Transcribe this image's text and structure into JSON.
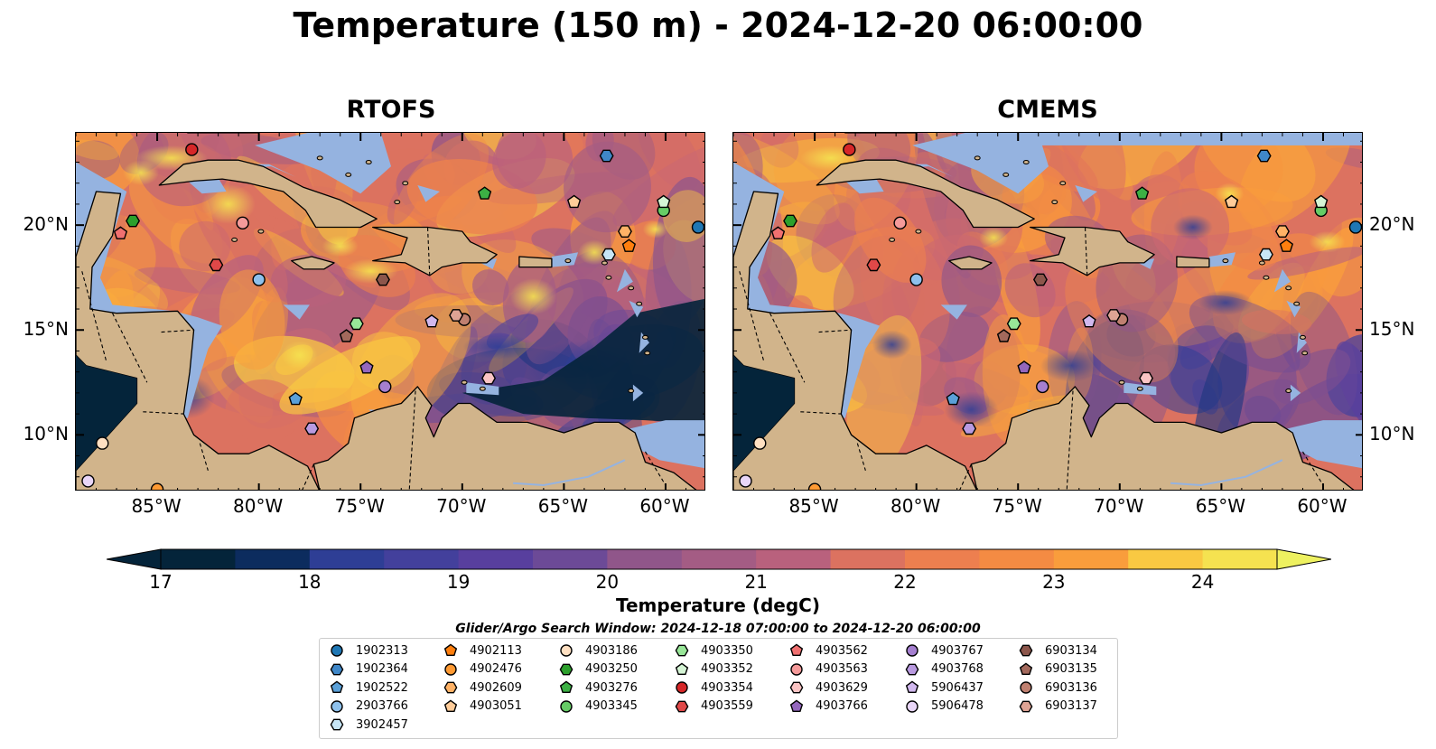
{
  "title": "Temperature (150 m) - 2024-12-20 06:00:00",
  "panels": [
    {
      "id": "rtofs",
      "title": "RTOFS"
    },
    {
      "id": "cmems",
      "title": "CMEMS"
    }
  ],
  "map_extent": {
    "lon": [
      -89,
      -58
    ],
    "lat": [
      7.3,
      24.4
    ]
  },
  "lon_ticks": [
    "85°W",
    "80°W",
    "75°W",
    "70°W",
    "65°W",
    "60°W"
  ],
  "lat_ticks": [
    "20°N",
    "15°N",
    "10°N"
  ],
  "colorbar": {
    "label": "Temperature (degC)",
    "ticks": [
      "17",
      "18",
      "19",
      "20",
      "21",
      "22",
      "23",
      "24"
    ],
    "range": [
      17,
      24.5
    ],
    "colors": [
      "#04243a",
      "#0c2c5e",
      "#1f3680",
      "#2e3e95",
      "#43409c",
      "#583f9e",
      "#6c4a97",
      "#7e4f90",
      "#90568a",
      "#a45c84",
      "#b9617d",
      "#cb6872",
      "#dc7260",
      "#ed7f4f",
      "#f48b43",
      "#f99d3c",
      "#fbb13b",
      "#f9c942",
      "#f5e250",
      "#eef160"
    ],
    "extend": "both"
  },
  "colors": {
    "ocean_shelf": "#95b3e0",
    "land": "#d1b48b",
    "deep": "#04243a"
  },
  "search_window": "Glider/Argo Search Window: 2024-12-18 07:00:00 to 2024-12-20 06:00:00",
  "legend": [
    {
      "id": "1902313",
      "color": "#1f77b4",
      "marker": "circle",
      "lon": -58.4,
      "lat": 19.9
    },
    {
      "id": "1902364",
      "color": "#3f87c8",
      "marker": "hexagon",
      "lon": -62.9,
      "lat": 23.3
    },
    {
      "id": "1902522",
      "color": "#5aa0d8",
      "marker": "pentagon",
      "lon": -78.2,
      "lat": 11.7
    },
    {
      "id": "2903766",
      "color": "#8ec1ec",
      "marker": "circle",
      "lon": -80.0,
      "lat": 17.4
    },
    {
      "id": "3902457",
      "color": "#c7e6f6",
      "marker": "hexagon",
      "lon": -62.8,
      "lat": 18.6
    },
    {
      "id": "4902113",
      "color": "#ff7f0e",
      "marker": "pentagon",
      "lon": -61.8,
      "lat": 19.0
    },
    {
      "id": "4902476",
      "color": "#ff9a33",
      "marker": "circle",
      "lon": -85.0,
      "lat": 7.4
    },
    {
      "id": "4902609",
      "color": "#ffb266",
      "marker": "hexagon",
      "lon": -62.0,
      "lat": 19.7
    },
    {
      "id": "4903051",
      "color": "#ffcc99",
      "marker": "pentagon",
      "lon": -64.5,
      "lat": 21.1
    },
    {
      "id": "4903186",
      "color": "#ffe0c2",
      "marker": "circle",
      "lon": -87.7,
      "lat": 9.6
    },
    {
      "id": "4903250",
      "color": "#2ca02c",
      "marker": "hexagon",
      "lon": -86.2,
      "lat": 20.2
    },
    {
      "id": "4903276",
      "color": "#3cb044",
      "marker": "pentagon",
      "lon": -68.9,
      "lat": 21.5
    },
    {
      "id": "4903345",
      "color": "#66cc66",
      "marker": "circle",
      "lon": -60.1,
      "lat": 20.7
    },
    {
      "id": "4903350",
      "color": "#98e698",
      "marker": "hexagon",
      "lon": -75.2,
      "lat": 15.3
    },
    {
      "id": "4903352",
      "color": "#d5f5d5",
      "marker": "pentagon",
      "lon": -60.1,
      "lat": 21.1
    },
    {
      "id": "4903354",
      "color": "#d62728",
      "marker": "circle",
      "lon": -83.3,
      "lat": 23.6
    },
    {
      "id": "4903559",
      "color": "#e04848",
      "marker": "hexagon",
      "lon": -82.1,
      "lat": 18.1
    },
    {
      "id": "4903562",
      "color": "#f07070",
      "marker": "pentagon",
      "lon": -86.8,
      "lat": 19.6
    },
    {
      "id": "4903563",
      "color": "#f59a9a",
      "marker": "circle",
      "lon": -80.8,
      "lat": 20.1
    },
    {
      "id": "4903629",
      "color": "#fbc4c4",
      "marker": "hexagon",
      "lon": -68.7,
      "lat": 12.7
    },
    {
      "id": "4903766",
      "color": "#9467bd",
      "marker": "pentagon",
      "lon": -74.7,
      "lat": 13.2
    },
    {
      "id": "4903767",
      "color": "#a57fd0",
      "marker": "circle",
      "lon": -73.8,
      "lat": 12.3
    },
    {
      "id": "4903768",
      "color": "#b99ae0",
      "marker": "hexagon",
      "lon": -77.4,
      "lat": 10.3
    },
    {
      "id": "5906437",
      "color": "#d1b8ee",
      "marker": "pentagon",
      "lon": -71.5,
      "lat": 15.4
    },
    {
      "id": "5906478",
      "color": "#e9d6f8",
      "marker": "circle",
      "lon": -88.4,
      "lat": 7.8
    },
    {
      "id": "6903134",
      "color": "#8c564b",
      "marker": "hexagon",
      "lon": -73.9,
      "lat": 17.4
    },
    {
      "id": "6903135",
      "color": "#a3695c",
      "marker": "pentagon",
      "lon": -75.7,
      "lat": 14.7
    },
    {
      "id": "6903136",
      "color": "#c08070",
      "marker": "circle",
      "lon": -69.9,
      "lat": 15.5
    },
    {
      "id": "6903137",
      "color": "#dea394",
      "marker": "hexagon",
      "lon": -70.3,
      "lat": 15.7
    }
  ]
}
